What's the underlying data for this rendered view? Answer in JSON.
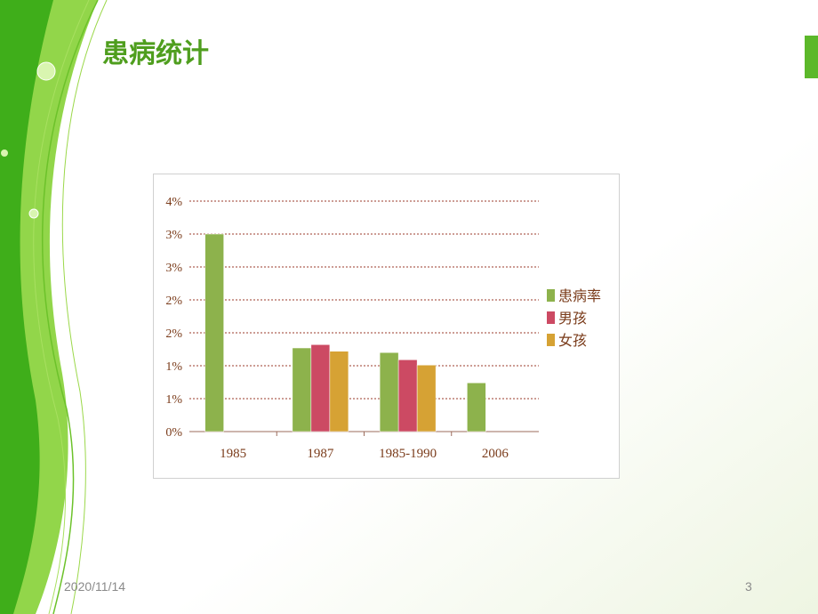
{
  "slide": {
    "title": "患病统计",
    "date": "2020/11/14",
    "page": "3"
  },
  "chart_data": {
    "type": "bar",
    "categories": [
      "1985",
      "1987",
      "1985-1990",
      "2006"
    ],
    "series": [
      {
        "name": "患病率",
        "color": "#8db24c",
        "values": [
          3.0,
          1.27,
          1.2,
          0.74
        ]
      },
      {
        "name": "男孩",
        "color": "#cc4a63",
        "values": [
          null,
          1.32,
          1.09,
          null
        ]
      },
      {
        "name": "女孩",
        "color": "#d6a234",
        "values": [
          null,
          1.22,
          1.01,
          null
        ]
      }
    ],
    "ylim": [
      0,
      3.5
    ],
    "yticks": [
      {
        "value": 0,
        "label": "0%"
      },
      {
        "value": 0.5,
        "label": "1%"
      },
      {
        "value": 1,
        "label": "1%"
      },
      {
        "value": 1.5,
        "label": "2%"
      },
      {
        "value": 2,
        "label": "2%"
      },
      {
        "value": 2.5,
        "label": "3%"
      },
      {
        "value": 3,
        "label": "3%"
      },
      {
        "value": 3.5,
        "label": "4%"
      }
    ],
    "grid": true,
    "legend": "right"
  }
}
